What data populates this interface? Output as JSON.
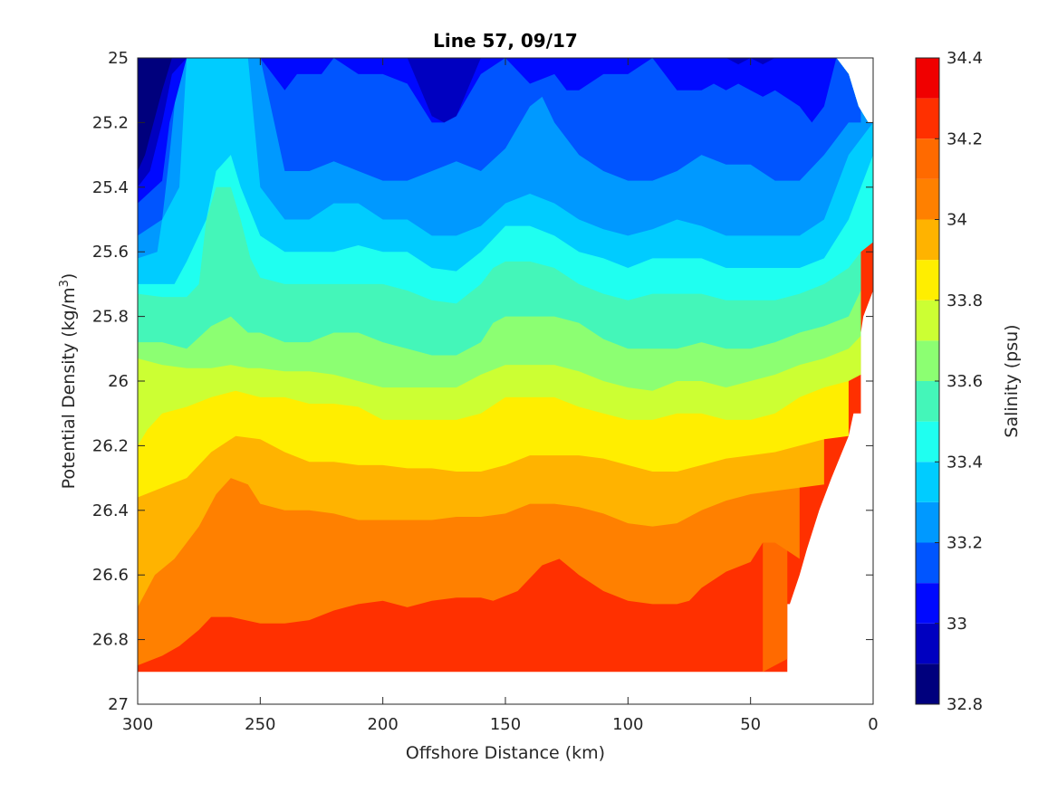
{
  "chart_data": {
    "type": "filled-contour",
    "title": "Line 57, 09/17",
    "xlabel": "Offshore Distance (km)",
    "ylabel": "Potential Density (kg/m",
    "ylabel_sup": "3",
    "ylabel_close": ")",
    "colorbar_label": "Salinity (psu)",
    "xlim": [
      300,
      0
    ],
    "x_reversed": true,
    "ylim": [
      25,
      27
    ],
    "y_reversed": true,
    "xticks": [
      300,
      250,
      200,
      150,
      100,
      50,
      0
    ],
    "yticks": [
      25,
      25.2,
      25.4,
      25.6,
      25.8,
      26,
      26.2,
      26.4,
      26.6,
      26.8,
      27
    ],
    "xtick_labels": [
      "300",
      "250",
      "200",
      "150",
      "100",
      "50",
      "0"
    ],
    "ytick_labels": [
      "25",
      "25.2",
      "25.4",
      "25.6",
      "25.8",
      "26",
      "26.2",
      "26.4",
      "26.6",
      "26.8",
      "27"
    ],
    "colorbar_ticks": [
      32.8,
      33,
      33.2,
      33.4,
      33.6,
      33.8,
      34,
      34.2,
      34.4
    ],
    "colorbar_tick_labels": [
      "32.8",
      "33",
      "33.2",
      "33.4",
      "33.6",
      "33.8",
      "34",
      "34.2",
      "34.4"
    ],
    "levels": [
      32.8,
      32.9,
      33.0,
      33.1,
      33.2,
      33.3,
      33.4,
      33.5,
      33.6,
      33.7,
      33.8,
      33.9,
      34.0,
      34.1,
      34.2,
      34.3,
      34.4
    ],
    "colors": [
      "#00007d",
      "#0000c0",
      "#0009ff",
      "#0055ff",
      "#0099ff",
      "#00ccff",
      "#1ffff0",
      "#44f6b9",
      "#8cff72",
      "#ccff33",
      "#ffee00",
      "#ffb300",
      "#ff8000",
      "#ff6a00",
      "#ff3000",
      "#f00000"
    ],
    "data_bottom_density": 26.9,
    "boundaries": [
      {
        "upper_level": 32.9,
        "x": [
          300,
          297,
          290,
          286,
          282,
          275
        ],
        "y": [
          25.35,
          25.3,
          25.1,
          25,
          25,
          25
        ]
      },
      {
        "upper_level": 33.0,
        "x": [
          300,
          295,
          290,
          286,
          280,
          270,
          260,
          250,
          240,
          230,
          220,
          210,
          200,
          190,
          180,
          175,
          170,
          160,
          150,
          140,
          130,
          120,
          110,
          100,
          90,
          80,
          70,
          60,
          55,
          50,
          45,
          40,
          30,
          20,
          15
        ],
        "y": [
          25.4,
          25.35,
          25.2,
          25.05,
          25,
          25,
          25,
          25,
          25,
          25,
          25,
          25,
          25,
          25,
          25.18,
          25.2,
          25.18,
          25,
          25,
          25,
          25,
          25,
          25,
          25,
          25,
          25,
          25,
          25,
          25.02,
          25,
          25.02,
          25,
          25,
          25,
          25
        ]
      },
      {
        "upper_level": 33.1,
        "x": [
          300,
          290,
          287,
          280,
          270,
          260,
          250,
          240,
          235,
          225,
          220,
          210,
          200,
          190,
          180,
          175,
          170,
          160,
          150,
          140,
          130,
          125,
          120,
          110,
          100,
          90,
          80,
          70,
          65,
          60,
          55,
          50,
          45,
          40,
          30,
          25,
          20,
          15
        ],
        "y": [
          25.45,
          25.38,
          25.2,
          25,
          25,
          25,
          25,
          25.1,
          25.05,
          25.05,
          25,
          25.05,
          25.05,
          25.08,
          25.2,
          25.2,
          25.18,
          25.05,
          25,
          25.08,
          25.05,
          25.1,
          25.1,
          25.05,
          25.05,
          25,
          25.1,
          25.1,
          25.08,
          25.1,
          25.08,
          25.1,
          25.12,
          25.1,
          25.15,
          25.2,
          25.15,
          25
        ]
      },
      {
        "upper_level": 33.2,
        "x": [
          300,
          290,
          287,
          283,
          280,
          270,
          260,
          255,
          250,
          240,
          230,
          220,
          210,
          200,
          190,
          180,
          170,
          160,
          150,
          140,
          135,
          130,
          120,
          110,
          100,
          90,
          80,
          70,
          60,
          50,
          40,
          30,
          20,
          10,
          5
        ],
        "y": [
          25.55,
          25.5,
          25.3,
          25,
          25,
          25,
          25,
          25,
          25,
          25.35,
          25.35,
          25.32,
          25.35,
          25.38,
          25.38,
          25.35,
          25.32,
          25.35,
          25.28,
          25.15,
          25.12,
          25.2,
          25.3,
          25.35,
          25.38,
          25.38,
          25.35,
          25.3,
          25.33,
          25.33,
          25.38,
          25.38,
          25.3,
          25.2,
          25.2
        ]
      },
      {
        "upper_level": 33.3,
        "x": [
          300,
          292,
          290,
          283,
          280,
          270,
          260,
          255,
          250,
          240,
          230,
          220,
          210,
          200,
          190,
          180,
          170,
          160,
          150,
          140,
          130,
          120,
          110,
          100,
          90,
          80,
          70,
          60,
          50,
          40,
          30,
          20,
          10,
          0
        ],
        "y": [
          25.62,
          25.6,
          25.5,
          25.4,
          25,
          25,
          25,
          25,
          25.4,
          25.5,
          25.5,
          25.45,
          25.45,
          25.5,
          25.5,
          25.55,
          25.55,
          25.52,
          25.45,
          25.42,
          25.45,
          25.5,
          25.53,
          25.55,
          25.53,
          25.5,
          25.52,
          25.55,
          25.55,
          25.55,
          25.55,
          25.5,
          25.3,
          25.2
        ]
      },
      {
        "upper_level": 33.4,
        "x": [
          300,
          292,
          285,
          280,
          272,
          268,
          262,
          258,
          250,
          240,
          230,
          220,
          210,
          200,
          190,
          180,
          170,
          160,
          150,
          140,
          130,
          120,
          110,
          100,
          90,
          80,
          70,
          60,
          50,
          40,
          30,
          20,
          10,
          0
        ],
        "y": [
          25.7,
          25.7,
          25.7,
          25.63,
          25.5,
          25.35,
          25.3,
          25.4,
          25.55,
          25.6,
          25.6,
          25.6,
          25.58,
          25.6,
          25.6,
          25.65,
          25.66,
          25.6,
          25.52,
          25.52,
          25.55,
          25.6,
          25.62,
          25.65,
          25.62,
          25.62,
          25.62,
          25.65,
          25.65,
          25.65,
          25.65,
          25.62,
          25.5,
          25.3
        ]
      },
      {
        "upper_level": 33.5,
        "x": [
          300,
          290,
          280,
          275,
          272,
          268,
          262,
          258,
          254,
          250,
          240,
          230,
          220,
          210,
          200,
          190,
          180,
          170,
          160,
          155,
          150,
          140,
          130,
          120,
          110,
          100,
          90,
          80,
          70,
          60,
          50,
          40,
          30,
          20,
          10,
          5,
          0
        ],
        "y": [
          25.73,
          25.74,
          25.74,
          25.7,
          25.5,
          25.4,
          25.4,
          25.5,
          25.62,
          25.68,
          25.7,
          25.7,
          25.7,
          25.7,
          25.7,
          25.72,
          25.75,
          25.76,
          25.7,
          25.65,
          25.63,
          25.63,
          25.65,
          25.7,
          25.73,
          25.75,
          25.73,
          25.73,
          25.73,
          25.75,
          25.75,
          25.75,
          25.73,
          25.7,
          25.65,
          25.6,
          25.57
        ]
      },
      {
        "upper_level": 33.6,
        "x": [
          300,
          290,
          280,
          270,
          262,
          255,
          250,
          240,
          230,
          220,
          210,
          200,
          190,
          180,
          170,
          160,
          155,
          150,
          140,
          130,
          120,
          110,
          100,
          90,
          80,
          70,
          60,
          50,
          40,
          30,
          20,
          10,
          5
        ],
        "y": [
          25.88,
          25.88,
          25.9,
          25.83,
          25.8,
          25.85,
          25.85,
          25.88,
          25.88,
          25.85,
          25.85,
          25.88,
          25.9,
          25.92,
          25.92,
          25.88,
          25.82,
          25.8,
          25.8,
          25.8,
          25.82,
          25.87,
          25.9,
          25.9,
          25.9,
          25.88,
          25.9,
          25.9,
          25.88,
          25.85,
          25.83,
          25.8,
          25.72
        ]
      },
      {
        "upper_level": 33.7,
        "x": [
          300,
          290,
          280,
          270,
          262,
          255,
          250,
          240,
          230,
          220,
          210,
          200,
          190,
          180,
          170,
          160,
          150,
          140,
          130,
          120,
          110,
          100,
          90,
          80,
          70,
          60,
          50,
          40,
          30,
          20,
          10,
          5
        ],
        "y": [
          25.93,
          25.95,
          25.96,
          25.96,
          25.95,
          25.96,
          25.96,
          25.97,
          25.97,
          25.98,
          26.0,
          26.02,
          26.02,
          26.02,
          26.02,
          25.98,
          25.95,
          25.95,
          25.95,
          25.97,
          26.0,
          26.02,
          26.03,
          26.0,
          26.0,
          26.02,
          26.0,
          25.98,
          25.95,
          25.93,
          25.9,
          25.86
        ]
      },
      {
        "upper_level": 33.8,
        "x": [
          300,
          296,
          290,
          280,
          270,
          260,
          250,
          240,
          230,
          220,
          210,
          200,
          190,
          180,
          170,
          160,
          150,
          140,
          130,
          120,
          110,
          100,
          90,
          80,
          70,
          60,
          50,
          40,
          30,
          20,
          10,
          5
        ],
        "y": [
          26.2,
          26.15,
          26.1,
          26.08,
          26.05,
          26.03,
          26.05,
          26.05,
          26.07,
          26.07,
          26.08,
          26.12,
          26.12,
          26.12,
          26.12,
          26.1,
          26.05,
          26.05,
          26.05,
          26.08,
          26.1,
          26.12,
          26.12,
          26.1,
          26.1,
          26.12,
          26.12,
          26.1,
          26.05,
          26.02,
          26.0,
          25.98
        ]
      },
      {
        "upper_level": 33.9,
        "x": [
          300,
          290,
          280,
          270,
          260,
          250,
          240,
          230,
          220,
          210,
          200,
          190,
          180,
          170,
          160,
          150,
          140,
          130,
          120,
          110,
          100,
          90,
          80,
          70,
          60,
          50,
          40,
          30,
          20,
          10
        ],
        "y": [
          26.36,
          26.33,
          26.3,
          26.22,
          26.17,
          26.18,
          26.22,
          26.25,
          26.25,
          26.26,
          26.26,
          26.27,
          26.27,
          26.28,
          26.28,
          26.26,
          26.23,
          26.23,
          26.23,
          26.24,
          26.26,
          26.28,
          26.28,
          26.26,
          26.24,
          26.23,
          26.22,
          26.2,
          26.18,
          26.17
        ]
      },
      {
        "upper_level": 34.0,
        "x": [
          300,
          293,
          285,
          275,
          268,
          262,
          255,
          250,
          240,
          230,
          220,
          210,
          200,
          190,
          180,
          170,
          160,
          150,
          140,
          130,
          120,
          110,
          100,
          90,
          80,
          70,
          60,
          50,
          40,
          30,
          20
        ],
        "y": [
          26.7,
          26.6,
          26.55,
          26.45,
          26.35,
          26.3,
          26.32,
          26.38,
          26.4,
          26.4,
          26.41,
          26.43,
          26.43,
          26.43,
          26.43,
          26.42,
          26.42,
          26.41,
          26.38,
          26.38,
          26.39,
          26.41,
          26.44,
          26.45,
          26.44,
          26.4,
          26.37,
          26.35,
          26.34,
          26.33,
          26.32
        ]
      },
      {
        "upper_level": 34.1,
        "x": [
          300,
          290,
          283,
          275,
          270,
          262,
          250,
          240,
          230,
          220,
          210,
          200,
          190,
          180,
          170,
          160,
          155,
          145,
          135,
          128,
          120,
          110,
          100,
          90,
          80,
          75,
          70,
          60,
          50,
          45,
          40,
          30
        ],
        "y": [
          26.88,
          26.85,
          26.82,
          26.77,
          26.73,
          26.73,
          26.75,
          26.75,
          26.74,
          26.71,
          26.69,
          26.68,
          26.7,
          26.68,
          26.67,
          26.67,
          26.68,
          26.65,
          26.57,
          26.55,
          26.6,
          26.65,
          26.68,
          26.69,
          26.69,
          26.68,
          26.64,
          26.59,
          26.56,
          26.5,
          26.5,
          26.55
        ]
      },
      {
        "upper_level": 34.2,
        "x": [
          45,
          40,
          35
        ],
        "y": [
          26.9,
          26.88,
          26.86
        ]
      }
    ],
    "data_right_edge": {
      "y": [
        25,
        25.05,
        25.15,
        25.2,
        25.2,
        25.35,
        25.5,
        25.65,
        25.72,
        25.8,
        25.85,
        26.05,
        26.1,
        26.1,
        26.17,
        26.3,
        26.4,
        26.52,
        26.6,
        26.6,
        26.69,
        26.69,
        26.9
      ],
      "x": [
        15,
        10,
        6,
        2,
        0,
        0,
        0,
        0,
        0,
        4,
        5,
        5,
        5,
        8,
        10,
        17,
        22,
        27,
        30,
        30,
        34,
        35,
        35
      ]
    }
  }
}
